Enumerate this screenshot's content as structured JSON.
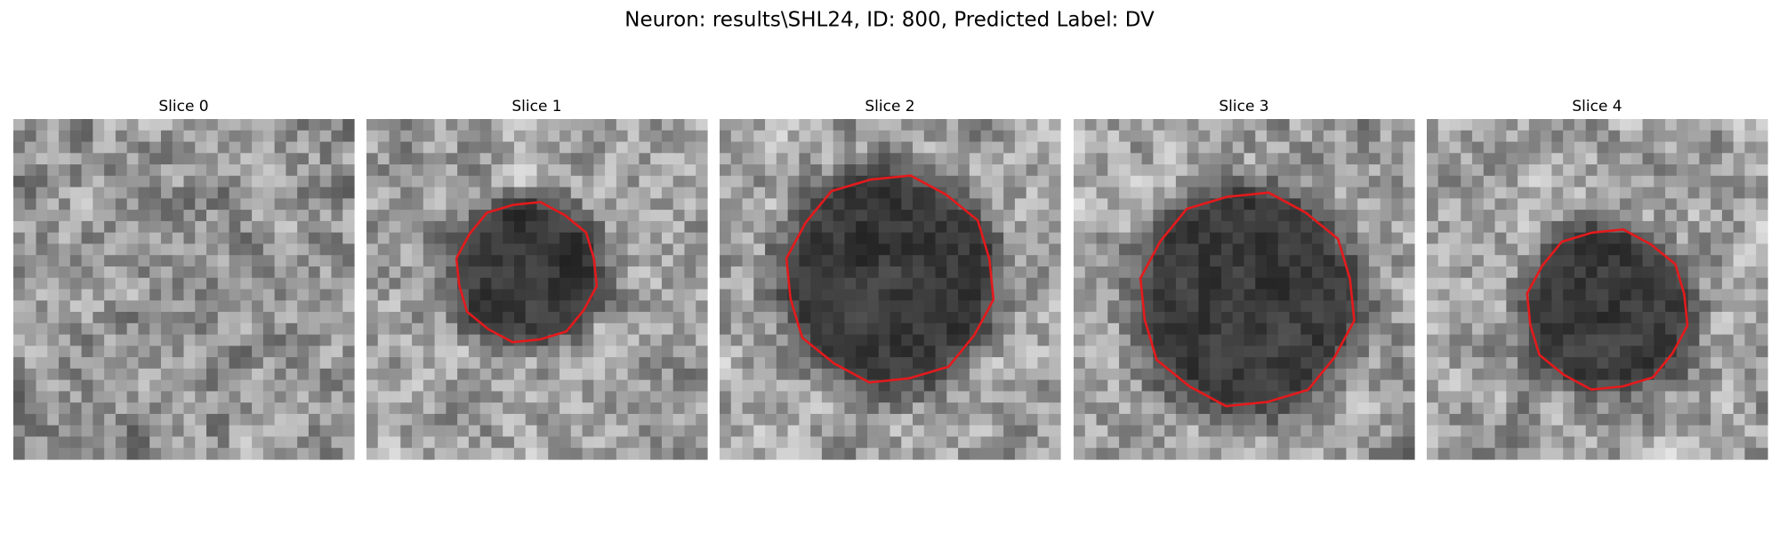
{
  "figure": {
    "title": "Neuron: results\\SHL24, ID: 800, Predicted Label: DV",
    "panels": [
      {
        "title": "Slice 0"
      },
      {
        "title": "Slice 1"
      },
      {
        "title": "Slice 2"
      },
      {
        "title": "Slice 3"
      },
      {
        "title": "Slice 4"
      }
    ]
  }
}
